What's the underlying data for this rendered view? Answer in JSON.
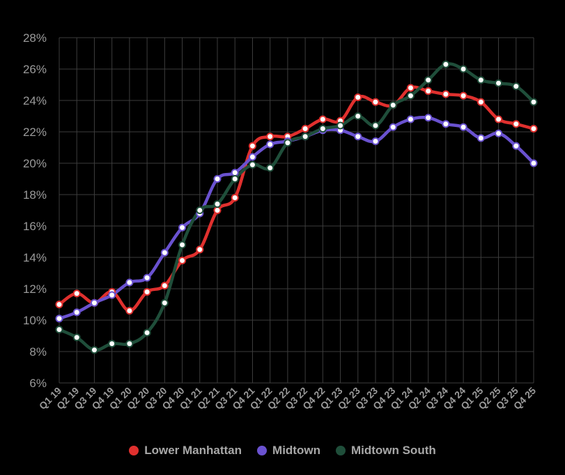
{
  "chart_data": {
    "type": "line",
    "title": "",
    "xlabel": "",
    "ylabel": "",
    "ylim": [
      6,
      28
    ],
    "yticks": [
      "6%",
      "8%",
      "10%",
      "12%",
      "14%",
      "16%",
      "18%",
      "20%",
      "22%",
      "24%",
      "26%",
      "28%"
    ],
    "ytick_values": [
      6,
      8,
      10,
      12,
      14,
      16,
      18,
      20,
      22,
      24,
      26,
      28
    ],
    "grid": true,
    "legend_position": "bottom-center",
    "categories": [
      "Q1 19",
      "Q2 19",
      "Q3 19",
      "Q4 19",
      "Q1 20",
      "Q2 20",
      "Q3 20",
      "Q4 20",
      "Q1 21",
      "Q2 21",
      "Q3 21",
      "Q4 21",
      "Q1 22",
      "Q2 22",
      "Q3 22",
      "Q4 22",
      "Q1 23",
      "Q2 23",
      "Q3 23",
      "Q4 23",
      "Q1 24",
      "Q2 24",
      "Q3 24",
      "Q4 24",
      "Q1 25",
      "Q2 25",
      "Q3 25",
      "Q4 25"
    ],
    "series": [
      {
        "name": "Lower Manhattan",
        "color": "#e0302e",
        "values": [
          11.0,
          11.7,
          11.1,
          11.8,
          10.6,
          11.8,
          12.2,
          13.8,
          14.5,
          17.0,
          17.8,
          21.1,
          21.7,
          21.7,
          22.2,
          22.8,
          22.7,
          24.2,
          23.9,
          23.7,
          24.8,
          24.6,
          24.4,
          24.3,
          23.9,
          22.8,
          22.5,
          22.2
        ]
      },
      {
        "name": "Midtown",
        "color": "#6a52d0",
        "values": [
          10.1,
          10.5,
          11.1,
          11.6,
          12.4,
          12.7,
          14.3,
          15.9,
          16.8,
          19.0,
          19.4,
          20.4,
          21.2,
          21.4,
          21.7,
          22.1,
          22.1,
          21.7,
          21.4,
          22.3,
          22.8,
          22.9,
          22.5,
          22.3,
          21.6,
          21.9,
          21.1,
          20.0
        ]
      },
      {
        "name": "Midtown South",
        "color": "#1f4e3a",
        "values": [
          9.4,
          8.9,
          8.1,
          8.5,
          8.5,
          9.2,
          11.1,
          14.8,
          17.0,
          17.4,
          19.0,
          19.9,
          19.7,
          21.3,
          21.7,
          22.2,
          22.4,
          23.0,
          22.4,
          23.7,
          24.3,
          25.3,
          26.3,
          26.0,
          25.3,
          25.1,
          24.9,
          23.9
        ]
      }
    ]
  }
}
